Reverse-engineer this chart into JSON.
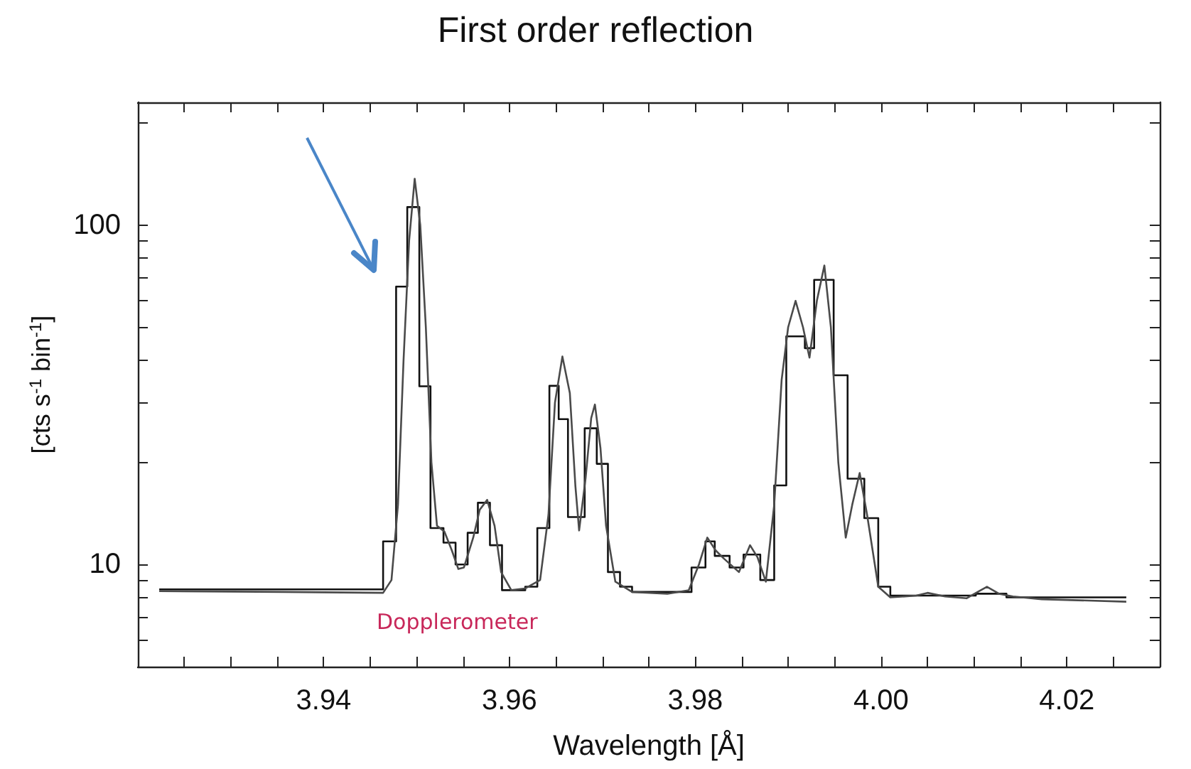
{
  "chart_data": {
    "type": "line",
    "title": "First order reflection",
    "xlabel": "Wavelength [Å]",
    "ylabel": "[cts s$^{-1}$ bin$^{-1}$]",
    "annotations": [
      "Dopplerometer"
    ],
    "log": "y",
    "marker": "none",
    "xlim": [
      3.92,
      4.03
    ],
    "xticks": [
      {
        "value": 3.925,
        "label": null
      },
      {
        "value": 3.93,
        "label": null
      },
      {
        "value": 3.935,
        "label": null
      },
      {
        "value": 3.94,
        "label": "3.94"
      },
      {
        "value": 3.945,
        "label": null
      },
      {
        "value": 3.95,
        "label": null
      },
      {
        "value": 3.955,
        "label": null
      },
      {
        "value": 3.96,
        "label": "3.96"
      },
      {
        "value": 3.965,
        "label": null
      },
      {
        "value": 3.97,
        "label": null
      },
      {
        "value": 3.975,
        "label": null
      },
      {
        "value": 3.98,
        "label": "3.98"
      },
      {
        "value": 3.985,
        "label": null
      },
      {
        "value": 3.99,
        "label": null
      },
      {
        "value": 3.995,
        "label": null
      },
      {
        "value": 4.0,
        "label": "4.00"
      },
      {
        "value": 4.005,
        "label": null
      },
      {
        "value": 4.01,
        "label": null
      },
      {
        "value": 4.015,
        "label": null
      },
      {
        "value": 4.02,
        "label": "4.02"
      },
      {
        "value": 4.025,
        "label": null
      }
    ],
    "ylim": [
      5,
      230
    ],
    "yticks": [
      {
        "value": 6,
        "label": null
      },
      {
        "value": 7,
        "label": null
      },
      {
        "value": 8,
        "label": null
      },
      {
        "value": 9,
        "label": null
      },
      10,
      {
        "value": 20,
        "label": null
      },
      {
        "value": 30,
        "label": null
      },
      {
        "value": 40,
        "label": null
      },
      {
        "value": 50,
        "label": null
      },
      {
        "value": 60,
        "label": null
      },
      {
        "value": 70,
        "label": null
      },
      {
        "value": 80,
        "label": null
      },
      {
        "value": 90,
        "label": null
      },
      100,
      {
        "value": 200,
        "label": null
      }
    ],
    "series": [
      {
        "type": "step",
        "color": "#111111",
        "x": [
          3.9223,
          3.9464,
          3.9478,
          3.949,
          3.9503,
          3.9515,
          3.9529,
          3.9542,
          3.9555,
          3.9566,
          3.9579,
          3.9592,
          3.9617,
          3.963,
          3.9643,
          3.9653,
          3.9663,
          3.9681,
          3.9694,
          3.9706,
          3.9719,
          3.9732,
          3.9796,
          3.9811,
          3.9821,
          3.9837,
          3.9852,
          3.987,
          3.9885,
          3.9898,
          3.9918,
          3.9928,
          3.9949,
          3.9964,
          3.9982,
          3.9997,
          4.001,
          4.0102,
          4.0135,
          4.0264
        ],
        "values": [
          8.45,
          11.7,
          65.9,
          113,
          33.5,
          12.8,
          11.6,
          10.0,
          12.4,
          15.2,
          11.4,
          8.4,
          8.6,
          12.8,
          33.6,
          26.8,
          13.8,
          25.2,
          19.8,
          9.5,
          8.6,
          8.3,
          9.8,
          11.7,
          10.6,
          9.8,
          10.7,
          9.0,
          17.1,
          47,
          43.4,
          69,
          36.1,
          17.9,
          13.7,
          8.6,
          8.1,
          8.2,
          8.0,
          8.0
        ]
      },
      {
        "color": "#4a4a4a",
        "x": [
          3.9223,
          3.9357,
          3.9464,
          3.9473,
          3.948,
          3.9486,
          3.9492,
          3.9498,
          3.9504,
          3.951,
          3.9516,
          3.9522,
          3.953,
          3.9538,
          3.9545,
          3.9551,
          3.9561,
          3.9568,
          3.9576,
          3.9584,
          3.9591,
          3.9602,
          3.9617,
          3.9633,
          3.9642,
          3.9649,
          3.9657,
          3.9665,
          3.9671,
          3.9675,
          3.9682,
          3.9688,
          3.9692,
          3.9698,
          3.9704,
          3.9714,
          3.9732,
          3.977,
          3.9793,
          3.9804,
          3.9813,
          3.9822,
          3.9831,
          3.9847,
          3.9859,
          3.9867,
          3.9876,
          3.9885,
          3.9893,
          3.99,
          3.9908,
          3.9916,
          3.9923,
          3.9931,
          3.9939,
          3.9946,
          3.9954,
          3.9962,
          3.9969,
          3.9977,
          3.9985,
          3.9997,
          4.001,
          4.0038,
          4.005,
          4.0069,
          4.0092,
          4.0104,
          4.0114,
          4.0127,
          4.0142,
          4.0173,
          4.0264
        ],
        "values": [
          8.35,
          8.3,
          8.25,
          9.0,
          15,
          40,
          90,
          137,
          100,
          50,
          20,
          13,
          12.5,
          11,
          9.7,
          9.8,
          12,
          14.5,
          15.5,
          13,
          9.5,
          8.4,
          8.5,
          9.0,
          14,
          30,
          41,
          32,
          17,
          12.6,
          18,
          27,
          29.6,
          22,
          13,
          8.9,
          8.3,
          8.2,
          8.4,
          10,
          12,
          11,
          10.4,
          9.5,
          11.4,
          10.5,
          8.9,
          15,
          35,
          50,
          59.8,
          50,
          40.7,
          60,
          76,
          50,
          20,
          12,
          15,
          18.6,
          14,
          8.6,
          8.0,
          8.1,
          8.25,
          8.05,
          7.95,
          8.3,
          8.6,
          8.2,
          8.05,
          7.9,
          7.77
        ]
      }
    ]
  }
}
